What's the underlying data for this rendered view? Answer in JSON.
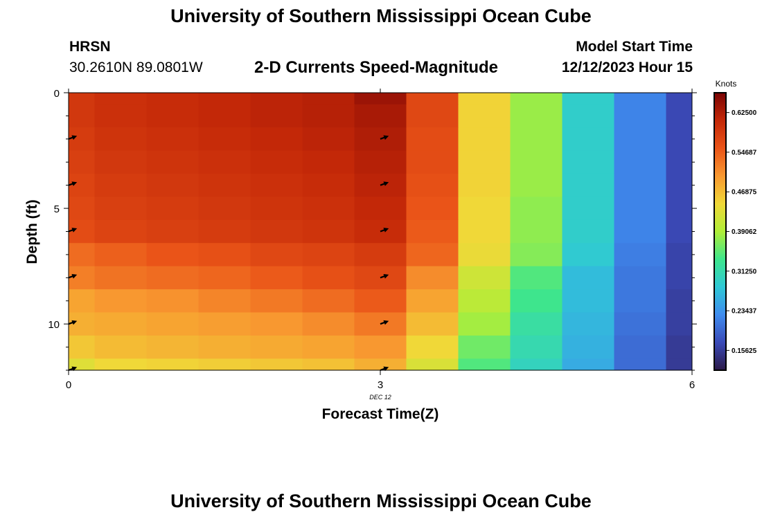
{
  "header": {
    "title": "University of Southern Mississippi Ocean Cube",
    "station": "HRSN",
    "coords": "30.2610N  89.0801W",
    "subtitle": "2-D Currents Speed-Magnitude",
    "model_label": "Model Start Time",
    "model_time": "12/12/2023 Hour 15"
  },
  "footer": {
    "title": "University of Southern Mississippi Ocean Cube"
  },
  "chart_data": {
    "type": "heatmap",
    "xlabel": "Forecast Time(Z)",
    "ylabel": "Depth (ft)",
    "xlim": [
      0,
      6
    ],
    "ylim": [
      12,
      0
    ],
    "x_ticks": [
      0,
      3,
      6
    ],
    "y_ticks": [
      0,
      5,
      10
    ],
    "x_annotation": {
      "x": 3,
      "text": "DEC 12"
    },
    "colorbar": {
      "title": "Knots",
      "min": 0.1171875,
      "max": 0.6640625,
      "ticks": [
        0.625,
        0.546875,
        0.46875,
        0.390625,
        0.3125,
        0.234375,
        0.15625
      ],
      "tick_labels": [
        "0.62500",
        "0.54687",
        "0.46875",
        "0.39062",
        "0.31250",
        "0.23437",
        "0.15625"
      ],
      "colors": [
        "#2c1a48",
        "#3a4ab8",
        "#3f8cee",
        "#2fc8d6",
        "#3ee68c",
        "#b0ee38",
        "#f0d838",
        "#f89830",
        "#ea5418",
        "#c42808",
        "#7a0404"
      ]
    },
    "x_edges": [
      0,
      0.25,
      0.75,
      1.25,
      1.75,
      2.25,
      2.75,
      3.25,
      3.75,
      4.25,
      4.75,
      5.25,
      5.75,
      6
    ],
    "depth_edges": [
      0,
      0.5,
      1.5,
      2.5,
      3.5,
      4.5,
      5.5,
      6.5,
      7.5,
      8.5,
      9.5,
      10.5,
      11.5,
      12
    ],
    "values": [
      [
        0.59,
        0.6,
        0.605,
        0.61,
        0.615,
        0.62,
        0.64,
        0.57,
        0.45,
        0.38,
        0.29,
        0.22,
        0.17
      ],
      [
        0.59,
        0.6,
        0.605,
        0.61,
        0.615,
        0.62,
        0.63,
        0.57,
        0.45,
        0.38,
        0.29,
        0.22,
        0.17
      ],
      [
        0.585,
        0.595,
        0.6,
        0.605,
        0.61,
        0.615,
        0.625,
        0.565,
        0.45,
        0.38,
        0.29,
        0.22,
        0.17
      ],
      [
        0.58,
        0.59,
        0.595,
        0.6,
        0.605,
        0.61,
        0.62,
        0.565,
        0.45,
        0.38,
        0.29,
        0.22,
        0.17
      ],
      [
        0.575,
        0.585,
        0.59,
        0.595,
        0.6,
        0.605,
        0.615,
        0.56,
        0.45,
        0.38,
        0.29,
        0.22,
        0.17
      ],
      [
        0.57,
        0.58,
        0.585,
        0.59,
        0.595,
        0.6,
        0.61,
        0.555,
        0.445,
        0.375,
        0.29,
        0.22,
        0.17
      ],
      [
        0.565,
        0.575,
        0.58,
        0.585,
        0.59,
        0.595,
        0.605,
        0.55,
        0.445,
        0.375,
        0.29,
        0.22,
        0.17
      ],
      [
        0.535,
        0.545,
        0.555,
        0.56,
        0.57,
        0.575,
        0.585,
        0.54,
        0.44,
        0.37,
        0.285,
        0.215,
        0.165
      ],
      [
        0.52,
        0.53,
        0.535,
        0.54,
        0.55,
        0.56,
        0.57,
        0.51,
        0.415,
        0.345,
        0.27,
        0.21,
        0.165
      ],
      [
        0.49,
        0.5,
        0.505,
        0.515,
        0.525,
        0.535,
        0.55,
        0.49,
        0.4,
        0.335,
        0.27,
        0.21,
        0.16
      ],
      [
        0.48,
        0.485,
        0.49,
        0.495,
        0.5,
        0.51,
        0.525,
        0.47,
        0.385,
        0.32,
        0.265,
        0.205,
        0.16
      ],
      [
        0.46,
        0.47,
        0.475,
        0.48,
        0.485,
        0.49,
        0.5,
        0.445,
        0.36,
        0.31,
        0.26,
        0.2,
        0.155
      ],
      [
        0.43,
        0.445,
        0.45,
        0.455,
        0.46,
        0.465,
        0.48,
        0.425,
        0.345,
        0.3,
        0.255,
        0.2,
        0.155
      ]
    ],
    "vectors": [
      {
        "time": 0,
        "depth": 2
      },
      {
        "time": 0,
        "depth": 4
      },
      {
        "time": 0,
        "depth": 6
      },
      {
        "time": 0,
        "depth": 8
      },
      {
        "time": 0,
        "depth": 10
      },
      {
        "time": 0,
        "depth": 12
      },
      {
        "time": 3,
        "depth": 2
      },
      {
        "time": 3,
        "depth": 4
      },
      {
        "time": 3,
        "depth": 6
      },
      {
        "time": 3,
        "depth": 8
      },
      {
        "time": 3,
        "depth": 10
      },
      {
        "time": 3,
        "depth": 12
      }
    ]
  }
}
